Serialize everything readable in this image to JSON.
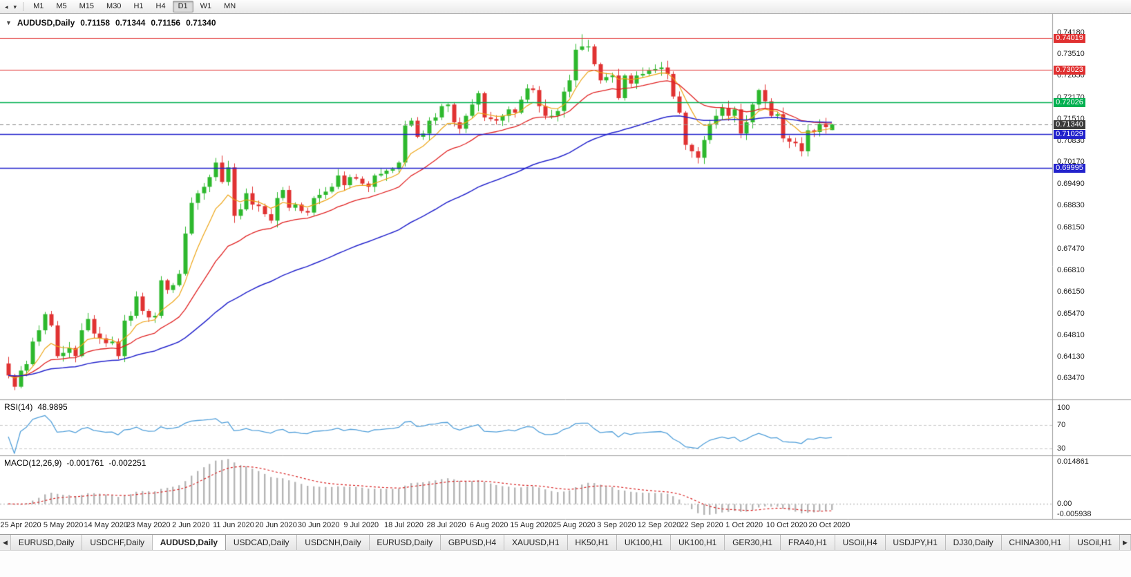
{
  "toolbar": {
    "timeframes": [
      "M1",
      "M5",
      "M15",
      "M30",
      "H1",
      "H4",
      "D1",
      "W1",
      "MN"
    ],
    "active_timeframe": "D1"
  },
  "chart": {
    "symbol_label": "AUDUSD,Daily",
    "ohlc": {
      "open": "0.71158",
      "high": "0.71344",
      "low": "0.71156",
      "close": "0.71340"
    },
    "price_axis_labels": [
      "0.74180",
      "0.73510",
      "0.72850",
      "0.72170",
      "0.71510",
      "0.70830",
      "0.70170",
      "0.69490",
      "0.68830",
      "0.68150",
      "0.67470",
      "0.66810",
      "0.66150",
      "0.65470",
      "0.64810",
      "0.64130",
      "0.63470"
    ]
  },
  "rsi": {
    "label": "RSI(14)",
    "value": "48.9895",
    "axis_labels": [
      "100",
      "70",
      "30"
    ]
  },
  "macd": {
    "label": "MACD(12,26,9)",
    "value": "-0.001761",
    "signal_value": "-0.002251",
    "axis_labels": [
      "0.014861",
      "0.00",
      "-0.005938"
    ]
  },
  "tabs": [
    "EURUSD,Daily",
    "USDCHF,Daily",
    "AUDUSD,Daily",
    "USDCAD,Daily",
    "USDCNH,Daily",
    "EURUSD,Daily",
    "GBPUSD,H4",
    "XAUUSD,H1",
    "HK50,H1",
    "UK100,H1",
    "UK100,H1",
    "GER30,H1",
    "FRA40,H1",
    "USOil,H4",
    "USDJPY,H1",
    "DJ30,Daily",
    "CHINA300,H1",
    "USOil,H1"
  ],
  "active_tab_index": 2,
  "chart_data": {
    "type": "candlestick",
    "symbol": "AUDUSD",
    "timeframe": "Daily",
    "x_labels": [
      "25 Apr 2020",
      "5 May 2020",
      "14 May 2020",
      "23 May 2020",
      "2 Jun 2020",
      "11 Jun 2020",
      "20 Jun 2020",
      "30 Jun 2020",
      "9 Jul 2020",
      "18 Jul 2020",
      "28 Jul 2020",
      "6 Aug 2020",
      "15 Aug 2020",
      "25 Aug 2020",
      "3 Sep 2020",
      "12 Sep 2020",
      "22 Sep 2020",
      "1 Oct 2020",
      "10 Oct 2020",
      "20 Oct 2020"
    ],
    "closes": [
      0.6355,
      0.632,
      0.637,
      0.639,
      0.646,
      0.6495,
      0.6545,
      0.651,
      0.6415,
      0.6425,
      0.644,
      0.6415,
      0.6495,
      0.653,
      0.6485,
      0.647,
      0.6455,
      0.646,
      0.6415,
      0.6525,
      0.654,
      0.66,
      0.6555,
      0.6535,
      0.654,
      0.665,
      0.662,
      0.6635,
      0.667,
      0.6795,
      0.689,
      0.692,
      0.694,
      0.697,
      0.7015,
      0.6955,
      0.7,
      0.685,
      0.687,
      0.692,
      0.6885,
      0.688,
      0.6855,
      0.6835,
      0.6905,
      0.693,
      0.6875,
      0.6885,
      0.6865,
      0.686,
      0.6905,
      0.6915,
      0.6925,
      0.694,
      0.6975,
      0.6945,
      0.697,
      0.6965,
      0.695,
      0.694,
      0.6975,
      0.698,
      0.699,
      0.6995,
      0.7015,
      0.713,
      0.7145,
      0.7095,
      0.7105,
      0.7145,
      0.7155,
      0.719,
      0.7195,
      0.714,
      0.712,
      0.716,
      0.7195,
      0.723,
      0.7155,
      0.715,
      0.7145,
      0.716,
      0.718,
      0.717,
      0.721,
      0.7245,
      0.724,
      0.719,
      0.716,
      0.716,
      0.7175,
      0.7235,
      0.727,
      0.7365,
      0.7375,
      0.7375,
      0.732,
      0.727,
      0.728,
      0.7285,
      0.7215,
      0.7285,
      0.726,
      0.7285,
      0.729,
      0.73,
      0.7305,
      0.731,
      0.729,
      0.722,
      0.717,
      0.707,
      0.705,
      0.703,
      0.7085,
      0.7135,
      0.716,
      0.7185,
      0.716,
      0.718,
      0.7105,
      0.714,
      0.7195,
      0.724,
      0.7205,
      0.716,
      0.7165,
      0.709,
      0.708,
      0.7075,
      0.705,
      0.7115,
      0.711,
      0.7135,
      0.7125,
      0.7134
    ],
    "first_open": 0.6392,
    "high_of_period": 0.7413,
    "last_candle": {
      "open": 0.71158,
      "high": 0.71344,
      "low": 0.71156,
      "close": 0.7134
    },
    "price_range_displayed": [
      0.6285,
      0.7472
    ],
    "levels": [
      {
        "label": "0.74019",
        "value": 0.74019,
        "color": "#e03030",
        "width": 1.2
      },
      {
        "label": "0.73023",
        "value": 0.73023,
        "color": "#e03030",
        "width": 1.2
      },
      {
        "label": "0.72026",
        "value": 0.72026,
        "color": "#00b050",
        "width": 1.6
      },
      {
        "label": "0.71029",
        "value": 0.71029,
        "color": "#2222cc",
        "width": 1.6
      },
      {
        "label": "0.69995",
        "value": 0.69995,
        "color": "#2222cc",
        "width": 1.6
      }
    ],
    "bid": {
      "label": "0.71340",
      "value": 0.7134,
      "color": "#3a3a3a"
    },
    "indicators": {
      "rsi": {
        "period": 14,
        "current": 48.9895,
        "levels": [
          70,
          30
        ]
      },
      "macd": {
        "fast": 12,
        "slow": 26,
        "signal": 9,
        "current": -0.001761,
        "signal_current": -0.002251
      },
      "moving_averages": [
        {
          "type": "ema",
          "period": 8,
          "color": "#eda414"
        },
        {
          "type": "ema",
          "period": 21,
          "color": "#e02020"
        },
        {
          "type": "ema",
          "period": 55,
          "color": "#2424cc"
        }
      ]
    },
    "colors": {
      "up": "#2db82d",
      "down": "#e03232",
      "ma_fast": "#eda414",
      "ma_mid": "#e02020",
      "ma_slow": "#2424cc",
      "rsi": "#4f9ed9",
      "macd_hist": "#b4b4b4",
      "macd_signal": "#d82020"
    }
  }
}
